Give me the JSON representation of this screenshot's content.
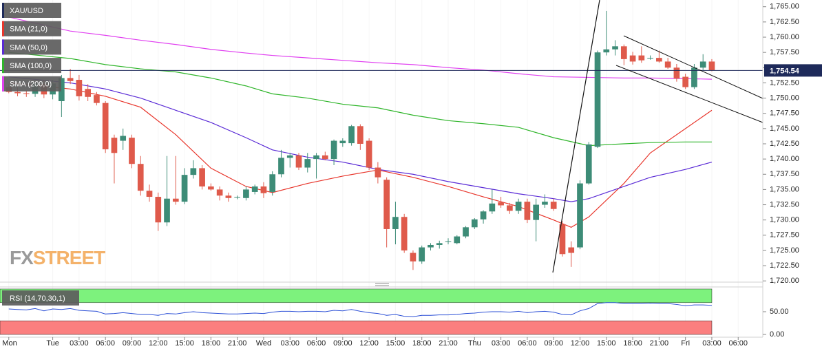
{
  "chart_data": {
    "type": "candlestick",
    "xlim": [
      -6,
      80.8
    ],
    "ylim": [
      1719.8,
      1766.1
    ],
    "grid": true,
    "yticks": [
      {
        "value": 1720,
        "label": "1,720.00"
      },
      {
        "value": 1722.5,
        "label": "1,722.50"
      },
      {
        "value": 1725,
        "label": "1,725.00"
      },
      {
        "value": 1727.5,
        "label": "1,727.50"
      },
      {
        "value": 1730,
        "label": "1,730.00"
      },
      {
        "value": 1732.5,
        "label": "1,732.50"
      },
      {
        "value": 1735,
        "label": "1,735.00"
      },
      {
        "value": 1737.5,
        "label": "1,737.50"
      },
      {
        "value": 1740,
        "label": "1,740.00"
      },
      {
        "value": 1742.5,
        "label": "1,742.50"
      },
      {
        "value": 1745,
        "label": "1,745.00"
      },
      {
        "value": 1747.5,
        "label": "1,747.50"
      },
      {
        "value": 1750,
        "label": "1,750.00"
      },
      {
        "value": 1752.5,
        "label": "1,752.50"
      },
      {
        "value": 1755,
        "label": "1,755.00"
      },
      {
        "value": 1757.5,
        "label": "1,757.50"
      },
      {
        "value": 1760,
        "label": "1,760.00"
      },
      {
        "value": 1762.5,
        "label": "1,762.50"
      },
      {
        "value": 1765,
        "label": "1,765.00"
      }
    ],
    "xticks": [
      {
        "value": -5,
        "label": "Mon"
      },
      {
        "value": 0,
        "label": "Tue"
      },
      {
        "value": 3,
        "label": "03:00"
      },
      {
        "value": 6,
        "label": "06:00"
      },
      {
        "value": 9,
        "label": "09:00"
      },
      {
        "value": 12,
        "label": "12:00"
      },
      {
        "value": 15,
        "label": "15:00"
      },
      {
        "value": 18,
        "label": "18:00"
      },
      {
        "value": 21,
        "label": "21:00"
      },
      {
        "value": 24,
        "label": "Wed"
      },
      {
        "value": 27,
        "label": "03:00"
      },
      {
        "value": 30,
        "label": "06:00"
      },
      {
        "value": 33,
        "label": "09:00"
      },
      {
        "value": 36,
        "label": "12:00"
      },
      {
        "value": 39,
        "label": "15:00"
      },
      {
        "value": 42,
        "label": "18:00"
      },
      {
        "value": 45,
        "label": "21:00"
      },
      {
        "value": 48,
        "label": "Thu"
      },
      {
        "value": 51,
        "label": "03:00"
      },
      {
        "value": 54,
        "label": "06:00"
      },
      {
        "value": 57,
        "label": "09:00"
      },
      {
        "value": 60,
        "label": "12:00"
      },
      {
        "value": 63,
        "label": "15:00"
      },
      {
        "value": 66,
        "label": "18:00"
      },
      {
        "value": 69,
        "label": "21:00"
      },
      {
        "value": 72,
        "label": "Fri"
      },
      {
        "value": 75,
        "label": "03:00"
      },
      {
        "value": 78,
        "label": "06:00"
      }
    ],
    "last_price": {
      "value": 1754.54,
      "label": "1,754.54"
    },
    "watermark": [
      "FX",
      "STREET"
    ],
    "series": [
      {
        "name": "XAU/USD",
        "type": "candlestick",
        "color": "#1e2a5a",
        "up_color": "#3d8c77",
        "down_color": "#df5a4b",
        "x": [
          -5,
          -4,
          -3,
          -2,
          -1,
          0,
          1,
          2,
          3,
          4,
          5,
          6,
          7,
          8,
          9,
          10,
          11,
          12,
          13,
          14,
          15,
          16,
          17,
          18,
          19,
          20,
          21,
          22,
          23,
          24,
          25,
          26,
          27,
          28,
          29,
          30,
          31,
          32,
          33,
          34,
          35,
          36,
          37,
          38,
          39,
          40,
          41,
          42,
          43,
          44,
          45,
          46,
          47,
          48,
          49,
          50,
          51,
          52,
          53,
          54,
          55,
          56,
          57,
          58,
          59,
          60,
          61,
          62,
          63,
          64,
          65,
          66,
          67,
          68,
          69,
          70,
          71,
          72,
          73,
          74,
          75
        ],
        "open": [
          1751.8,
          1751.0,
          1750.8,
          1750.7,
          1752.3,
          1750.6,
          1749.5,
          1753.3,
          1753.0,
          1751.5,
          1750.5,
          1749.2,
          1743.5,
          1743.0,
          1743.5,
          1739.2,
          1734.8,
          1733.8,
          1729.6,
          1733.5,
          1733.0,
          1737.4,
          1738.5,
          1735.5,
          1735.0,
          1734.0,
          1733.7,
          1733.6,
          1734.6,
          1735.5,
          1734.6,
          1737.5,
          1740.2,
          1740.6,
          1738.6,
          1740.0,
          1740.6,
          1740.0,
          1742.6,
          1742.6,
          1745.4,
          1743.0,
          1738.6,
          1736.6,
          1728.5,
          1730.5,
          1724.6,
          1723.2,
          1725.5,
          1725.9,
          1726.4,
          1726.2,
          1727.3,
          1728.8,
          1730.1,
          1731.4,
          1732.9,
          1732.4,
          1731.5,
          1733.0,
          1730.0,
          1732.5,
          1733.0,
          1729.3,
          1725.5,
          1725.5,
          1736.0,
          1742.0,
          1757.5,
          1758.0,
          1758.5,
          1757.0,
          1757.0,
          1756.6,
          1756.6,
          1756.0,
          1755.0,
          1753.5,
          1751.8,
          1755.0,
          1756.0
        ],
        "high": [
          1752.3,
          1751.8,
          1751.2,
          1752.8,
          1753.0,
          1753.0,
          1753.8,
          1754.8,
          1753.8,
          1752.3,
          1751.0,
          1749.5,
          1744.0,
          1745.0,
          1744.0,
          1740.5,
          1735.8,
          1734.5,
          1740.5,
          1740.5,
          1738.5,
          1739.8,
          1739.0,
          1736.0,
          1735.5,
          1734.5,
          1734.0,
          1735.5,
          1735.8,
          1736.2,
          1738.0,
          1741.5,
          1741.0,
          1741.0,
          1741.0,
          1741.0,
          1741.2,
          1743.2,
          1743.4,
          1745.6,
          1745.7,
          1743.4,
          1739.5,
          1737.0,
          1733.0,
          1731.0,
          1725.0,
          1725.8,
          1726.2,
          1726.6,
          1727.0,
          1727.5,
          1729.0,
          1730.3,
          1731.6,
          1735.0,
          1733.8,
          1732.8,
          1733.5,
          1733.5,
          1733.5,
          1734.2,
          1733.5,
          1729.8,
          1726.5,
          1736.5,
          1742.8,
          1757.8,
          1764.3,
          1759.5,
          1758.8,
          1757.6,
          1758.5,
          1757.0,
          1757.8,
          1756.6,
          1755.6,
          1754.0,
          1755.6,
          1757.2,
          1756.4
        ],
        "low": [
          1750.8,
          1750.3,
          1750.2,
          1750.2,
          1750.0,
          1749.8,
          1746.9,
          1752.3,
          1749.6,
          1749.5,
          1748.8,
          1741.0,
          1736.0,
          1741.5,
          1738.5,
          1734.0,
          1733.0,
          1728.2,
          1729.0,
          1732.5,
          1732.6,
          1736.8,
          1735.0,
          1734.8,
          1733.2,
          1733.0,
          1733.4,
          1733.2,
          1734.2,
          1733.6,
          1734.0,
          1737.0,
          1738.6,
          1738.2,
          1737.8,
          1736.8,
          1739.8,
          1739.0,
          1742.0,
          1742.2,
          1741.5,
          1738.2,
          1736.0,
          1725.5,
          1726.0,
          1724.6,
          1721.8,
          1722.8,
          1725.0,
          1725.3,
          1726.0,
          1726.0,
          1727.0,
          1728.5,
          1729.4,
          1731.0,
          1732.0,
          1731.0,
          1731.0,
          1729.5,
          1726.5,
          1732.0,
          1731.5,
          1724.0,
          1722.3,
          1725.2,
          1735.8,
          1741.8,
          1757.0,
          1757.0,
          1755.4,
          1755.5,
          1755.8,
          1756.3,
          1755.8,
          1754.8,
          1752.7,
          1751.5,
          1751.5,
          1754.6,
          1754.4
        ],
        "close": [
          1751.0,
          1750.8,
          1750.7,
          1752.5,
          1750.6,
          1752.4,
          1753.3,
          1752.8,
          1750.3,
          1750.2,
          1749.2,
          1741.6,
          1741.0,
          1743.8,
          1739.2,
          1734.8,
          1733.8,
          1729.6,
          1733.5,
          1733.0,
          1737.4,
          1738.5,
          1735.5,
          1735.0,
          1734.0,
          1733.6,
          1733.8,
          1735.0,
          1735.5,
          1734.4,
          1737.5,
          1740.2,
          1740.6,
          1738.6,
          1740.0,
          1740.6,
          1740.0,
          1743.0,
          1743.0,
          1745.4,
          1742.5,
          1738.6,
          1737.0,
          1728.5,
          1730.5,
          1725.0,
          1723.2,
          1725.5,
          1725.9,
          1726.2,
          1726.5,
          1727.3,
          1728.8,
          1730.1,
          1731.4,
          1732.7,
          1732.4,
          1731.5,
          1733.0,
          1730.0,
          1732.5,
          1733.0,
          1731.8,
          1724.4,
          1724.6,
          1736.0,
          1742.4,
          1757.5,
          1758.0,
          1758.5,
          1756.4,
          1756.0,
          1756.2,
          1756.6,
          1756.0,
          1755.0,
          1753.2,
          1751.8,
          1755.0,
          1756.0,
          1754.54
        ]
      },
      {
        "name": "SMA (21,0)",
        "type": "line",
        "color": "#e8352b",
        "x": [
          -5,
          2,
          6,
          10,
          14,
          18,
          22,
          25,
          29,
          33,
          37,
          41,
          45,
          49,
          53,
          57,
          59,
          61,
          65,
          68,
          72,
          75
        ],
        "values": [
          1752.5,
          1751.5,
          1750.3,
          1748.5,
          1744.0,
          1738.5,
          1735.5,
          1734.5,
          1736.0,
          1737.2,
          1738.2,
          1737.0,
          1735.5,
          1733.8,
          1732.2,
          1730.0,
          1728.8,
          1730.5,
          1736.0,
          1741.0,
          1745.0,
          1748.0
        ]
      },
      {
        "name": "SMA (50,0)",
        "type": "line",
        "color": "#5a2bd6",
        "x": [
          -5,
          2,
          6,
          10,
          14,
          18,
          22,
          25,
          29,
          33,
          37,
          41,
          45,
          49,
          53,
          57,
          59,
          61,
          65,
          68,
          72,
          75
        ],
        "values": [
          1753.5,
          1752.5,
          1751.5,
          1750.0,
          1748.0,
          1746.0,
          1743.5,
          1741.5,
          1740.3,
          1739.5,
          1738.3,
          1737.5,
          1736.3,
          1735.3,
          1734.3,
          1733.5,
          1733.0,
          1733.5,
          1735.5,
          1737.0,
          1738.3,
          1739.5
        ]
      },
      {
        "name": "SMA (100,0)",
        "type": "line",
        "color": "#2fb52a",
        "x": [
          -5,
          2,
          6,
          10,
          14,
          18,
          22,
          25,
          29,
          33,
          37,
          41,
          45,
          49,
          53,
          57,
          61,
          65,
          68,
          72,
          75
        ],
        "values": [
          1757.5,
          1756.5,
          1755.5,
          1754.8,
          1754.3,
          1753.3,
          1752.0,
          1750.7,
          1750.0,
          1749.0,
          1748.4,
          1747.2,
          1746.3,
          1745.8,
          1745.2,
          1743.5,
          1742.2,
          1742.5,
          1742.7,
          1742.8,
          1742.8
        ]
      },
      {
        "name": "SMA (200,0)",
        "type": "line",
        "color": "#e03ff0",
        "x": [
          -5,
          2,
          6,
          10,
          14,
          18,
          22,
          25,
          29,
          33,
          37,
          41,
          45,
          49,
          53,
          57,
          61,
          65,
          68,
          72,
          75
        ],
        "values": [
          1763.3,
          1761.0,
          1760.3,
          1759.5,
          1758.8,
          1758.0,
          1757.4,
          1757.0,
          1756.6,
          1756.2,
          1755.8,
          1755.5,
          1755.0,
          1754.6,
          1754.0,
          1753.5,
          1753.4,
          1753.3,
          1753.3,
          1753.2,
          1753.1
        ]
      }
    ],
    "rsi": {
      "name": "RSI (14,70,30,1)",
      "type": "line",
      "color": "#2b4fd6",
      "ylim": [
        -6,
        103
      ],
      "yticks": [
        {
          "value": 50,
          "label": "50.00"
        },
        {
          "value": 0,
          "label": "0.00"
        }
      ],
      "upper": 70,
      "lower": 30,
      "upper_color": "#7df27d",
      "lower_color": "#fb7f7f",
      "values": [
        56,
        55,
        54,
        57,
        52,
        56,
        55,
        57,
        53,
        52,
        51,
        45,
        46,
        48,
        46,
        44,
        44,
        42,
        46,
        45,
        48,
        50,
        48,
        47,
        46,
        45,
        45,
        46,
        47,
        46,
        49,
        51,
        51,
        50,
        51,
        51,
        50,
        53,
        52,
        55,
        51,
        48,
        46,
        42,
        44,
        40,
        39,
        42,
        42,
        43,
        43,
        44,
        46,
        47,
        49,
        50,
        50,
        49,
        51,
        48,
        50,
        51,
        49,
        44,
        43,
        52,
        57,
        68,
        70,
        70,
        68,
        68,
        68,
        69,
        68,
        68,
        66,
        63,
        65,
        65,
        64
      ]
    }
  }
}
